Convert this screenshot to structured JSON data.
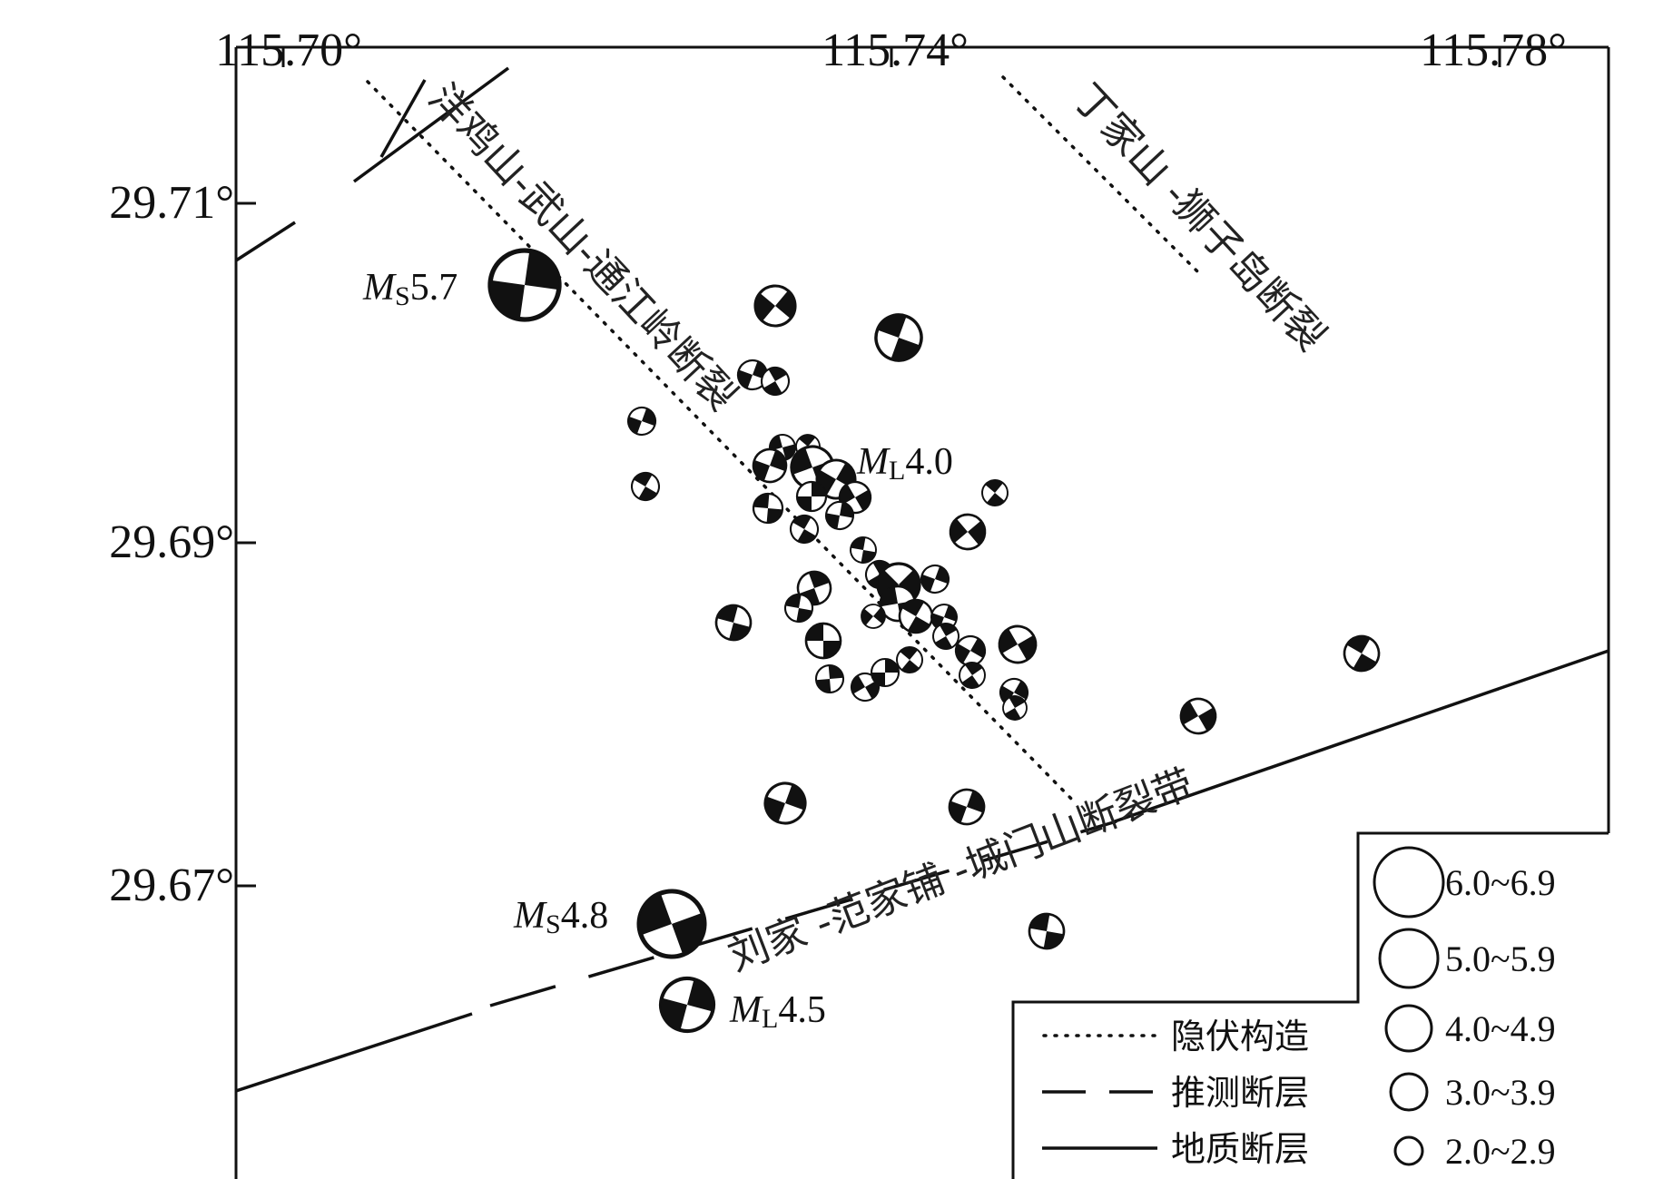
{
  "map": {
    "lon_ticks": [
      "115.70°",
      "115.74°",
      "115.78°"
    ],
    "lat_ticks": [
      "29.71°",
      "29.69°",
      "29.67°"
    ],
    "faults": {
      "yangjishan": "洋鸡山-武山-通江岭断裂",
      "dingjiashan": "丁家山 -狮子岛断裂",
      "liujia": "刘家 -范家铺 -城门山断裂带"
    },
    "events": {
      "ms57": {
        "prefix": "M",
        "sub": "S",
        "value": "5.7"
      },
      "ml40": {
        "prefix": "M",
        "sub": "L",
        "value": "4.0"
      },
      "ms48": {
        "prefix": "M",
        "sub": "S",
        "value": "4.8"
      },
      "ml45": {
        "prefix": "M",
        "sub": "L",
        "value": "4.5"
      }
    }
  },
  "legend": {
    "lines": [
      {
        "label": "隐伏构造",
        "style": "dotted"
      },
      {
        "label": "推测断层",
        "style": "dashed"
      },
      {
        "label": "地质断层",
        "style": "solid"
      }
    ],
    "magnitudes": [
      "6.0~6.9",
      "5.0~5.9",
      "4.0~4.9",
      "3.0~3.9",
      "2.0~2.9"
    ]
  },
  "colors": {
    "ink": "#111111",
    "background": "#ffffff"
  }
}
